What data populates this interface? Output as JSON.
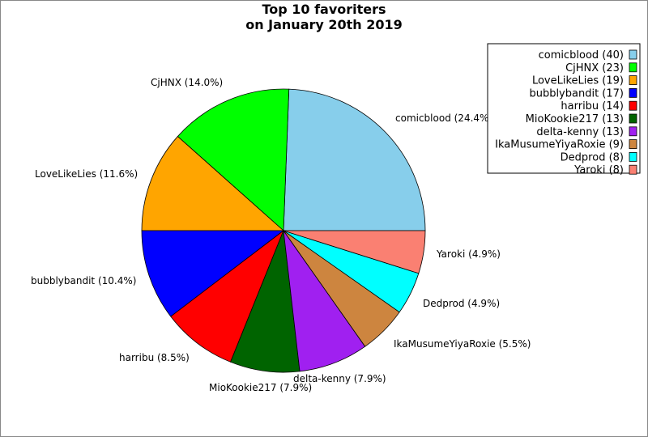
{
  "chart_data": {
    "type": "pie",
    "title_lines": [
      "Top 10 favoriters",
      "on January 20th 2019"
    ],
    "slices": [
      {
        "label": "comicblood",
        "value": 40,
        "color": "#87ceeb",
        "slice_label": "comicblood (24.4%)",
        "legend_label": "comicblood (40)"
      },
      {
        "label": "CjHNX",
        "value": 23,
        "color": "#00ff00",
        "slice_label": "CjHNX (14.0%)",
        "legend_label": "CjHNX (23)"
      },
      {
        "label": "LoveLikeLies",
        "value": 19,
        "color": "#ffa500",
        "slice_label": "LoveLikeLies (11.6%)",
        "legend_label": "LoveLikeLies (19)"
      },
      {
        "label": "bubblybandit",
        "value": 17,
        "color": "#0000ff",
        "slice_label": "bubblybandit (10.4%)",
        "legend_label": "bubblybandit (17)"
      },
      {
        "label": "harribu",
        "value": 14,
        "color": "#ff0000",
        "slice_label": "harribu (8.5%)",
        "legend_label": "harribu (14)"
      },
      {
        "label": "MioKookie217",
        "value": 13,
        "color": "#006400",
        "slice_label": "MioKookie217 (7.9%)",
        "legend_label": "MioKookie217 (13)"
      },
      {
        "label": "delta-kenny",
        "value": 13,
        "color": "#a020f0",
        "slice_label": "delta-kenny (7.9%)",
        "legend_label": "delta-kenny (13)"
      },
      {
        "label": "IkaMusumeYiyaRoxie",
        "value": 9,
        "color": "#cd853f",
        "slice_label": "IkaMusumeYiyaRoxie (5.5%)",
        "legend_label": "IkaMusumeYiyaRoxie (9)"
      },
      {
        "label": "Dedprod",
        "value": 8,
        "color": "#00ffff",
        "slice_label": "Dedprod (4.9%)",
        "legend_label": "Dedprod (8)"
      },
      {
        "label": "Yaroki",
        "value": 8,
        "color": "#fa8072",
        "slice_label": "Yaroki (4.9%)",
        "legend_label": "Yaroki (8)"
      }
    ],
    "legend_position": "top-right"
  }
}
